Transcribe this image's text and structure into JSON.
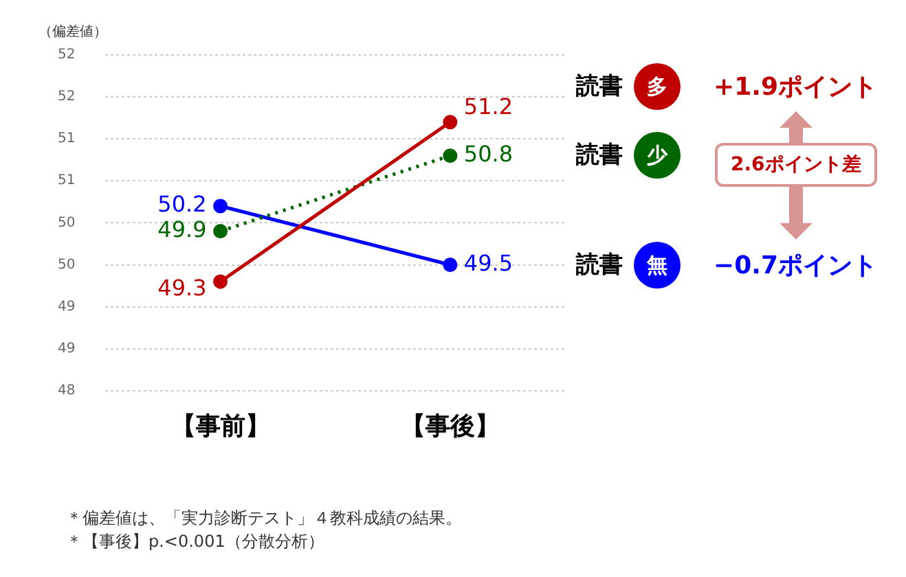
{
  "chart_data": {
    "type": "line",
    "ylabel": "（偏差値）",
    "categories": [
      "【事前】",
      "【事後】"
    ],
    "series": [
      {
        "name": "読書 多",
        "color": "#c00000",
        "values": [
          49.3,
          51.2
        ],
        "line_style": "solid"
      },
      {
        "name": "読書 少",
        "color": "#006600",
        "values": [
          49.9,
          50.8
        ],
        "line_style": "dotted"
      },
      {
        "name": "読書 無",
        "color": "#0000ff",
        "values": [
          50.2,
          49.5
        ],
        "line_style": "solid"
      }
    ],
    "ylim": [
      48,
      52
    ],
    "yticks": [
      48,
      {
        "value": 48.5,
        "label": "49"
      },
      49,
      {
        "value": 49.5,
        "label": "50"
      },
      50,
      {
        "value": 50.5,
        "label": "51"
      },
      51,
      {
        "value": 51.5,
        "label": "52"
      },
      52
    ],
    "grid": "y",
    "legend": "right",
    "marker": "circle",
    "data_labels": true,
    "annotations": [
      "+1.9ポイント",
      "−0.7ポイント",
      "2.6ポイント差",
      "＊偏差値は、「実力診断テスト」４教科成績の結果。",
      "＊【事後】p.<0.001（分散分析）"
    ]
  }
}
